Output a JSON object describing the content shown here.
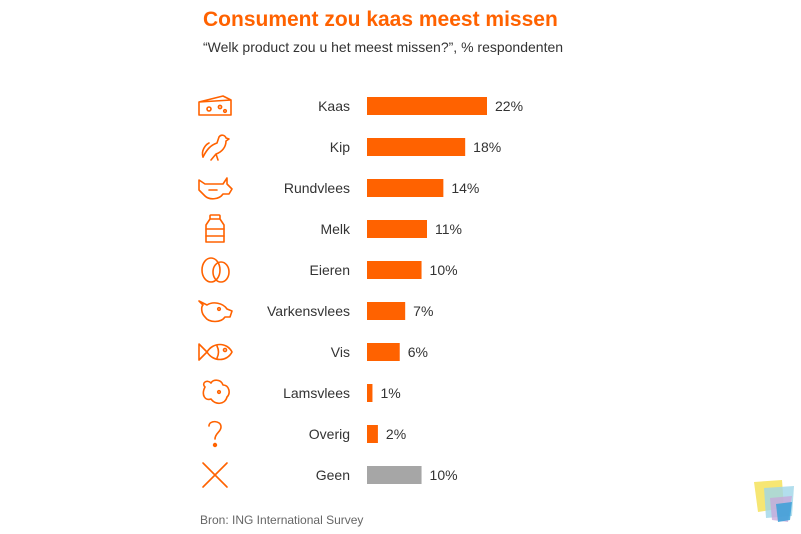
{
  "title": "Consument zou kaas meest missen",
  "subtitle": "“Welk product zou u het meest missen?”, % respondenten",
  "source": "Bron: ING International Survey",
  "colors": {
    "accent": "#ff6200",
    "neutral": "#a6a6a6",
    "label": "#333333"
  },
  "chart_data": {
    "type": "bar",
    "orientation": "horizontal",
    "categories": [
      "Kaas",
      "Kip",
      "Rundvlees",
      "Melk",
      "Eieren",
      "Varkensvlees",
      "Vis",
      "Lamsvlees",
      "Overig",
      "Geen"
    ],
    "values": [
      22,
      18,
      14,
      11,
      10,
      7,
      6,
      1,
      2,
      10
    ],
    "labels": [
      "22%",
      "18%",
      "14%",
      "11%",
      "10%",
      "7%",
      "6%",
      "1%",
      "2%",
      "10%"
    ],
    "bar_colors": [
      "#ff6200",
      "#ff6200",
      "#ff6200",
      "#ff6200",
      "#ff6200",
      "#ff6200",
      "#ff6200",
      "#ff6200",
      "#ff6200",
      "#a6a6a6"
    ],
    "icons": [
      "cheese-icon",
      "chicken-icon",
      "cow-icon",
      "milk-bottle-icon",
      "eggs-icon",
      "pig-icon",
      "fish-icon",
      "sheep-icon",
      "question-mark-icon",
      "cross-icon"
    ],
    "xlim": [
      0,
      22
    ],
    "grid": false,
    "legend": "none"
  }
}
